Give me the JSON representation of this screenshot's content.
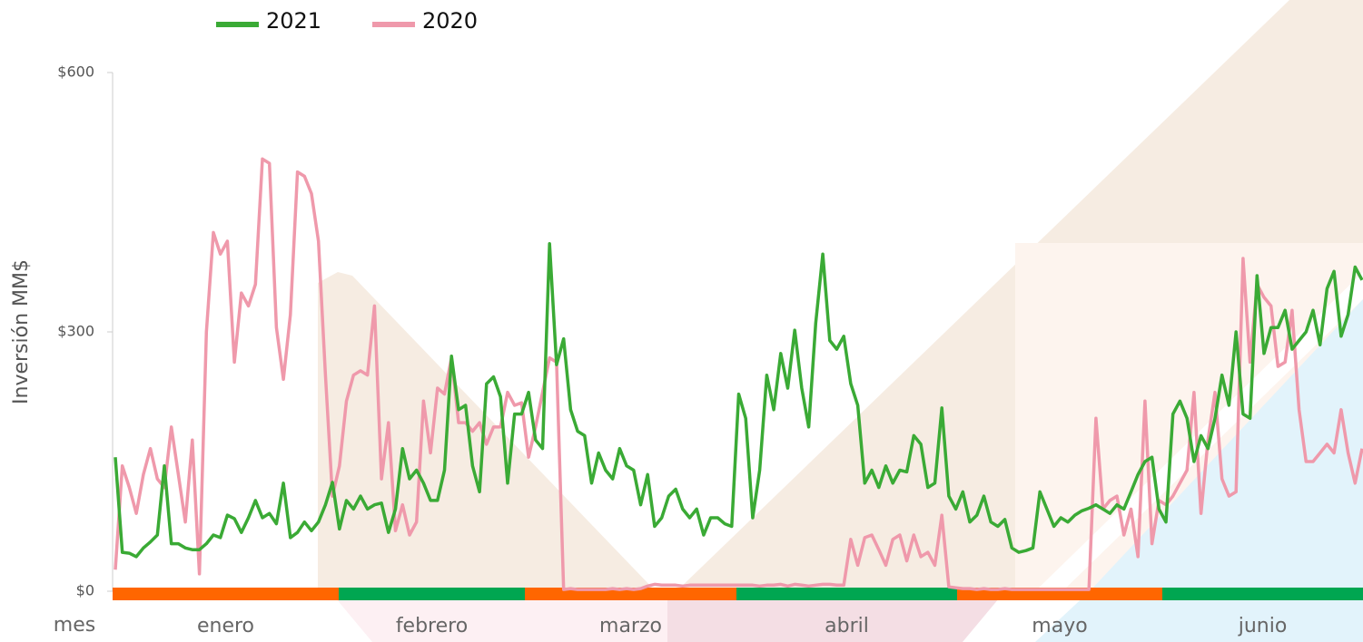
{
  "chart_data": {
    "type": "line",
    "y_label": "Inversión MM$",
    "x_label": "mes",
    "ylim": [
      0,
      600
    ],
    "yticks": [
      {
        "value": 0,
        "label": "$0"
      },
      {
        "value": 300,
        "label": "$300"
      },
      {
        "value": 600,
        "label": "$600"
      }
    ],
    "months": [
      {
        "name": "enero",
        "color": "#ff6600"
      },
      {
        "name": "febrero",
        "color": "#00a651"
      },
      {
        "name": "marzo",
        "color": "#ff6600"
      },
      {
        "name": "abril",
        "color": "#00a651"
      },
      {
        "name": "mayo",
        "color": "#ff6600"
      },
      {
        "name": "junio",
        "color": "#00a651"
      }
    ],
    "series": [
      {
        "name": "2021",
        "color": "#3aaa35",
        "values": [
          155,
          45,
          44,
          40,
          50,
          57,
          65,
          145,
          55,
          55,
          50,
          48,
          48,
          55,
          65,
          62,
          88,
          84,
          68,
          85,
          105,
          85,
          90,
          78,
          125,
          62,
          68,
          80,
          70,
          80,
          100,
          126,
          72,
          105,
          95,
          110,
          95,
          100,
          102,
          68,
          95,
          165,
          130,
          140,
          125,
          105,
          105,
          140,
          272,
          210,
          215,
          145,
          115,
          240,
          248,
          225,
          125,
          205,
          205,
          230,
          175,
          165,
          402,
          262,
          292,
          210,
          185,
          180,
          125,
          160,
          140,
          130,
          165,
          145,
          140,
          100,
          135,
          75,
          85,
          110,
          118,
          95,
          85,
          95,
          65,
          85,
          85,
          78,
          75,
          228,
          200,
          85,
          140,
          250,
          210,
          275,
          235,
          302,
          235,
          190,
          310,
          390,
          290,
          280,
          295,
          240,
          215,
          125,
          140,
          120,
          145,
          125,
          140,
          138,
          180,
          170,
          120,
          125,
          212,
          110,
          95,
          115,
          80,
          88,
          110,
          80,
          75,
          83,
          50,
          45,
          47,
          50,
          115,
          95,
          75,
          85,
          80,
          88,
          93,
          96,
          100,
          95,
          90,
          100,
          95,
          115,
          135,
          150,
          155,
          95,
          80,
          205,
          220,
          200,
          150,
          180,
          165,
          200,
          250,
          215,
          300,
          205,
          200,
          365,
          275,
          305,
          305,
          325,
          280,
          290,
          300,
          325,
          285,
          350,
          370,
          295,
          320,
          375,
          360
        ]
      },
      {
        "name": "2020",
        "color": "#ef99ab",
        "values": [
          25,
          145,
          120,
          90,
          135,
          165,
          130,
          120,
          190,
          135,
          80,
          175,
          20,
          300,
          415,
          390,
          405,
          265,
          345,
          330,
          355,
          500,
          495,
          305,
          245,
          320,
          485,
          480,
          460,
          405,
          250,
          110,
          145,
          220,
          250,
          255,
          250,
          330,
          130,
          195,
          70,
          100,
          65,
          80,
          220,
          160,
          235,
          228,
          270,
          195,
          195,
          185,
          195,
          170,
          190,
          190,
          230,
          215,
          218,
          155,
          190,
          230,
          270,
          265,
          2,
          3,
          2,
          2,
          2,
          2,
          2,
          3,
          2,
          3,
          2,
          3,
          6,
          8,
          7,
          7,
          7,
          6,
          7,
          7,
          7,
          7,
          7,
          7,
          7,
          7,
          7,
          7,
          6,
          7,
          7,
          8,
          6,
          8,
          7,
          6,
          7,
          8,
          8,
          7,
          7,
          60,
          30,
          62,
          65,
          48,
          30,
          60,
          65,
          35,
          65,
          40,
          45,
          30,
          88,
          5,
          4,
          3,
          3,
          2,
          3,
          2,
          2,
          3,
          2,
          2,
          2,
          2,
          2,
          2,
          2,
          2,
          2,
          2,
          2,
          2,
          200,
          95,
          105,
          110,
          65,
          95,
          40,
          220,
          55,
          105,
          100,
          110,
          125,
          140,
          230,
          90,
          175,
          230,
          130,
          110,
          115,
          385,
          265,
          355,
          340,
          330,
          260,
          265,
          325,
          210,
          150,
          150,
          160,
          170,
          160,
          210,
          160,
          125,
          165
        ]
      }
    ]
  }
}
